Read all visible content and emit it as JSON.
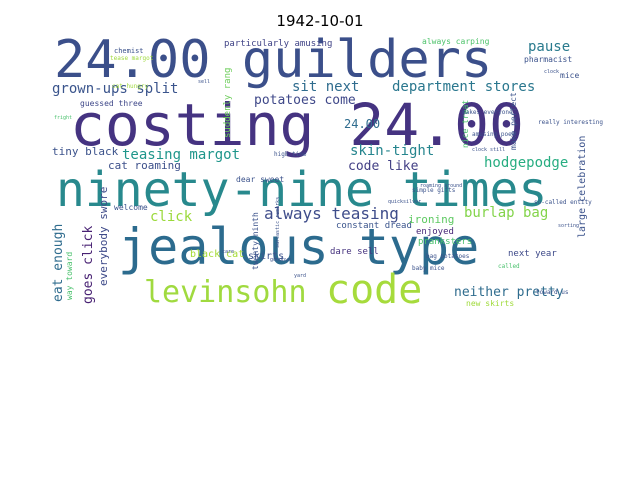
{
  "title": "1942-10-01",
  "words": [
    {
      "text": "jealous type",
      "color": "#2c6b8e"
    },
    {
      "text": "costing 24.00",
      "color": "#453381"
    },
    {
      "text": "ninety-nine times",
      "color": "#28898d"
    },
    {
      "text": "24.00 guilders",
      "color": "#3b4f8a"
    },
    {
      "text": "code",
      "color": "#a6db3c"
    },
    {
      "text": "levinsohn",
      "color": "#a0da3f"
    },
    {
      "text": "always teasing",
      "color": "#3e4c8a"
    },
    {
      "text": "grown-ups split",
      "color": "#3a548c"
    },
    {
      "text": "department stores",
      "color": "#2a778e"
    },
    {
      "text": "teasing margot",
      "color": "#1f968b"
    },
    {
      "text": "potatoes come",
      "color": "#3f4889"
    },
    {
      "text": "sit next",
      "color": "#2f6c8e"
    },
    {
      "text": "pause",
      "color": "#2a7b8e"
    },
    {
      "text": "skin-tight",
      "color": "#25858e"
    },
    {
      "text": "hodgepodge",
      "color": "#27ad81"
    },
    {
      "text": "code like",
      "color": "#423f85"
    },
    {
      "text": "burlap bag",
      "color": "#84d44b"
    },
    {
      "text": "click",
      "color": "#9ad93a"
    },
    {
      "text": "neither pretty",
      "color": "#2f6c8e"
    },
    {
      "text": "24.00",
      "color": "#2f6c8e"
    },
    {
      "text": "eat enough",
      "color": "#2f6c8e"
    },
    {
      "text": "goes click",
      "color": "#482173"
    },
    {
      "text": "everybody swore",
      "color": "#3e4a89"
    },
    {
      "text": "tiny black",
      "color": "#3b528b"
    },
    {
      "text": "cat roaming",
      "color": "#3c4f8a"
    },
    {
      "text": "ironing",
      "color": "#5ec962"
    },
    {
      "text": "skirts",
      "color": "#3b528b"
    },
    {
      "text": "black cat",
      "color": "#a5db36"
    },
    {
      "text": "dare sell",
      "color": "#46337f"
    },
    {
      "text": "next year",
      "color": "#3e4a89"
    },
    {
      "text": "enjoyed",
      "color": "#482878"
    },
    {
      "text": "pranksters",
      "color": "#4ac16d"
    },
    {
      "text": "constant dread",
      "color": "#3a548c"
    },
    {
      "text": "new skirts",
      "color": "#9fda3a"
    },
    {
      "text": "particularly amusing",
      "color": "#414487"
    },
    {
      "text": "always carping",
      "color": "#4ec36b"
    },
    {
      "text": "pharmacist",
      "color": "#3b528b"
    },
    {
      "text": "chemist",
      "color": "#3b528b"
    },
    {
      "text": "mice",
      "color": "#3b528b"
    },
    {
      "text": "large celebration",
      "color": "#3f4889"
    },
    {
      "text": "guessed three",
      "color": "#3b528b"
    },
    {
      "text": "make perfect",
      "color": "#3b528b"
    },
    {
      "text": "nice treat",
      "color": "#4ac16d"
    },
    {
      "text": "suddenly rang",
      "color": "#6ccd5a"
    },
    {
      "text": "twenty-ninth",
      "color": "#3b528b"
    },
    {
      "text": "dear sweet",
      "color": "#3b528b"
    },
    {
      "text": "welcome",
      "color": "#3b528b"
    },
    {
      "text": "way toward",
      "color": "#4ac16d"
    },
    {
      "text": "makes everyone",
      "color": "#3b528b"
    },
    {
      "text": "amusing poem",
      "color": "#3b528b"
    },
    {
      "text": "really interesting",
      "color": "#3b528b"
    },
    {
      "text": "high time",
      "color": "#3b528b"
    },
    {
      "text": "roaming around",
      "color": "#3b528b"
    },
    {
      "text": "bag potatoes",
      "color": "#3b528b"
    },
    {
      "text": "simple gifts",
      "color": "#3b528b"
    },
    {
      "text": "baby mice",
      "color": "#3b528b"
    },
    {
      "text": "so-called entity",
      "color": "#3b528b"
    },
    {
      "text": "toward us",
      "color": "#3b528b"
    },
    {
      "text": "cat hungry",
      "color": "#a0da3f"
    },
    {
      "text": "tease margot",
      "color": "#a0da3f"
    },
    {
      "text": "sarcastic remarks",
      "color": "#3b528b"
    },
    {
      "text": "quicksilver",
      "color": "#3b528b"
    },
    {
      "text": "clock",
      "color": "#3b528b"
    },
    {
      "text": "sell",
      "color": "#3b528b"
    },
    {
      "text": "fright",
      "color": "#4ac16d"
    },
    {
      "text": "goodbye",
      "color": "#3b528b"
    },
    {
      "text": "called",
      "color": "#4ac16d"
    },
    {
      "text": "sorting",
      "color": "#3b528b"
    },
    {
      "text": "yard",
      "color": "#3b528b"
    },
    {
      "text": "clock still",
      "color": "#3b528b"
    },
    {
      "text": "care",
      "color": "#3b528b"
    }
  ]
}
